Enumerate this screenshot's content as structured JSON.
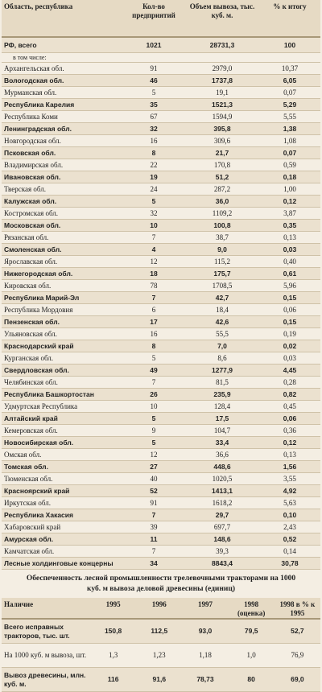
{
  "table": {
    "header": [
      "Область, республика",
      "Кол-во предприятий",
      "Объем вывоза, тыс. куб. м.",
      "% к итогу"
    ],
    "total": {
      "cells": [
        "РФ, всего",
        "1021",
        "28731,3",
        "100"
      ],
      "bold": true
    },
    "subhead": "в том числе:",
    "rows": [
      {
        "cells": [
          "Архангельская обл.",
          "91",
          "2979,0",
          "10,37"
        ],
        "bold": false
      },
      {
        "cells": [
          "Вологодская обл.",
          "46",
          "1737,8",
          "6,05"
        ],
        "bold": true
      },
      {
        "cells": [
          "Мурманская обл.",
          "5",
          "19,1",
          "0,07"
        ],
        "bold": false
      },
      {
        "cells": [
          "Республика Карелия",
          "35",
          "1521,3",
          "5,29"
        ],
        "bold": true
      },
      {
        "cells": [
          "Республика Коми",
          "67",
          "1594,9",
          "5,55"
        ],
        "bold": false
      },
      {
        "cells": [
          "Ленинградская обл.",
          "32",
          "395,8",
          "1,38"
        ],
        "bold": true
      },
      {
        "cells": [
          "Новгородская обл.",
          "16",
          "309,6",
          "1,08"
        ],
        "bold": false
      },
      {
        "cells": [
          "Псковская обл.",
          "8",
          "21,7",
          "0,07"
        ],
        "bold": true
      },
      {
        "cells": [
          "Владимирская обл.",
          "22",
          "170,8",
          "0,59"
        ],
        "bold": false
      },
      {
        "cells": [
          "Ивановская обл.",
          "19",
          "51,2",
          "0,18"
        ],
        "bold": true
      },
      {
        "cells": [
          "Тверская обл.",
          "24",
          "287,2",
          "1,00"
        ],
        "bold": false
      },
      {
        "cells": [
          "Калужская обл.",
          "5",
          "36,0",
          "0,12"
        ],
        "bold": true
      },
      {
        "cells": [
          "Костромская обл.",
          "32",
          "1109,2",
          "3,87"
        ],
        "bold": false
      },
      {
        "cells": [
          "Московская обл.",
          "10",
          "100,8",
          "0,35"
        ],
        "bold": true
      },
      {
        "cells": [
          "Рязанская обл.",
          "7",
          "38,7",
          "0,13"
        ],
        "bold": false
      },
      {
        "cells": [
          "Смоленская обл.",
          "4",
          "9,0",
          "0,03"
        ],
        "bold": true
      },
      {
        "cells": [
          "Ярославская обл.",
          "12",
          "115,2",
          "0,40"
        ],
        "bold": false
      },
      {
        "cells": [
          "Нижегородская обл.",
          "18",
          "175,7",
          "0,61"
        ],
        "bold": true
      },
      {
        "cells": [
          "Кировская обл.",
          "78",
          "1708,5",
          "5,96"
        ],
        "bold": false
      },
      {
        "cells": [
          "Республика Марий-Эл",
          "7",
          "42,7",
          "0,15"
        ],
        "bold": true
      },
      {
        "cells": [
          "Республика Мордовия",
          "6",
          "18,4",
          "0,06"
        ],
        "bold": false
      },
      {
        "cells": [
          "Пензенская обл.",
          "17",
          "42,6",
          "0,15"
        ],
        "bold": true
      },
      {
        "cells": [
          "Ульяновская обл.",
          "16",
          "55,5",
          "0,19"
        ],
        "bold": false
      },
      {
        "cells": [
          "Краснодарский край",
          "8",
          "7,0",
          "0,02"
        ],
        "bold": true
      },
      {
        "cells": [
          "Курганская обл.",
          "5",
          "8,6",
          "0,03"
        ],
        "bold": false
      },
      {
        "cells": [
          "Свердловская обл.",
          "49",
          "1277,9",
          "4,45"
        ],
        "bold": true
      },
      {
        "cells": [
          "Челябинская обл.",
          "7",
          "81,5",
          "0,28"
        ],
        "bold": false
      },
      {
        "cells": [
          "Республика Башкортостан",
          "26",
          "235,9",
          "0,82"
        ],
        "bold": true
      },
      {
        "cells": [
          "Удмуртская Республика",
          "10",
          "128,4",
          "0,45"
        ],
        "bold": false
      },
      {
        "cells": [
          "Алтайский край",
          "5",
          "17,5",
          "0,06"
        ],
        "bold": true
      },
      {
        "cells": [
          "Кемеровская обл.",
          "9",
          "104,7",
          "0,36"
        ],
        "bold": false
      },
      {
        "cells": [
          "Новосибирская обл.",
          "5",
          "33,4",
          "0,12"
        ],
        "bold": true
      },
      {
        "cells": [
          "Омская обл.",
          "12",
          "36,6",
          "0,13"
        ],
        "bold": false
      },
      {
        "cells": [
          "Томская обл.",
          "27",
          "448,6",
          "1,56"
        ],
        "bold": true
      },
      {
        "cells": [
          "Тюменская обл.",
          "40",
          "1020,5",
          "3,55"
        ],
        "bold": false
      },
      {
        "cells": [
          "Красноярский край",
          "52",
          "1413,1",
          "4,92"
        ],
        "bold": true
      },
      {
        "cells": [
          "Иркутская обл.",
          "91",
          "1618,2",
          "5,63"
        ],
        "bold": false
      },
      {
        "cells": [
          "Республика Хакасия",
          "7",
          "29,7",
          "0,10"
        ],
        "bold": true
      },
      {
        "cells": [
          "Хабаровский край",
          "39",
          "697,7",
          "2,43"
        ],
        "bold": false
      },
      {
        "cells": [
          "Амурская обл.",
          "11",
          "148,6",
          "0,52"
        ],
        "bold": true
      },
      {
        "cells": [
          "Камчатская обл.",
          "7",
          "39,3",
          "0,14"
        ],
        "bold": false
      },
      {
        "cells": [
          "Лесные холдинговые концерны",
          "34",
          "8843,4",
          "30,78"
        ],
        "bold": true
      }
    ]
  },
  "caption": "Обеспеченность лесной промышленности трелевочными тракторами на 1000 куб. м вывоза деловой древесины (единиц)",
  "table2": {
    "header": [
      "Наличие",
      "1995",
      "1996",
      "1997",
      "1998 (оценка)",
      "1998 в % к 1995"
    ],
    "rows": [
      {
        "cells": [
          "Всего исправных тракторов, тыс. шт.",
          "150,8",
          "112,5",
          "93,0",
          "79,5",
          "52,7"
        ],
        "bold": true
      },
      {
        "cells": [
          "На 1000 куб. м вывоза, шт.",
          "1,3",
          "1,23",
          "1,18",
          "1,0",
          "76,9"
        ],
        "bold": false
      },
      {
        "cells": [
          "Вывоз древесины, млн. куб. м.",
          "116",
          "91,6",
          "78,73",
          "80",
          "69,0"
        ],
        "bold": true
      }
    ]
  }
}
